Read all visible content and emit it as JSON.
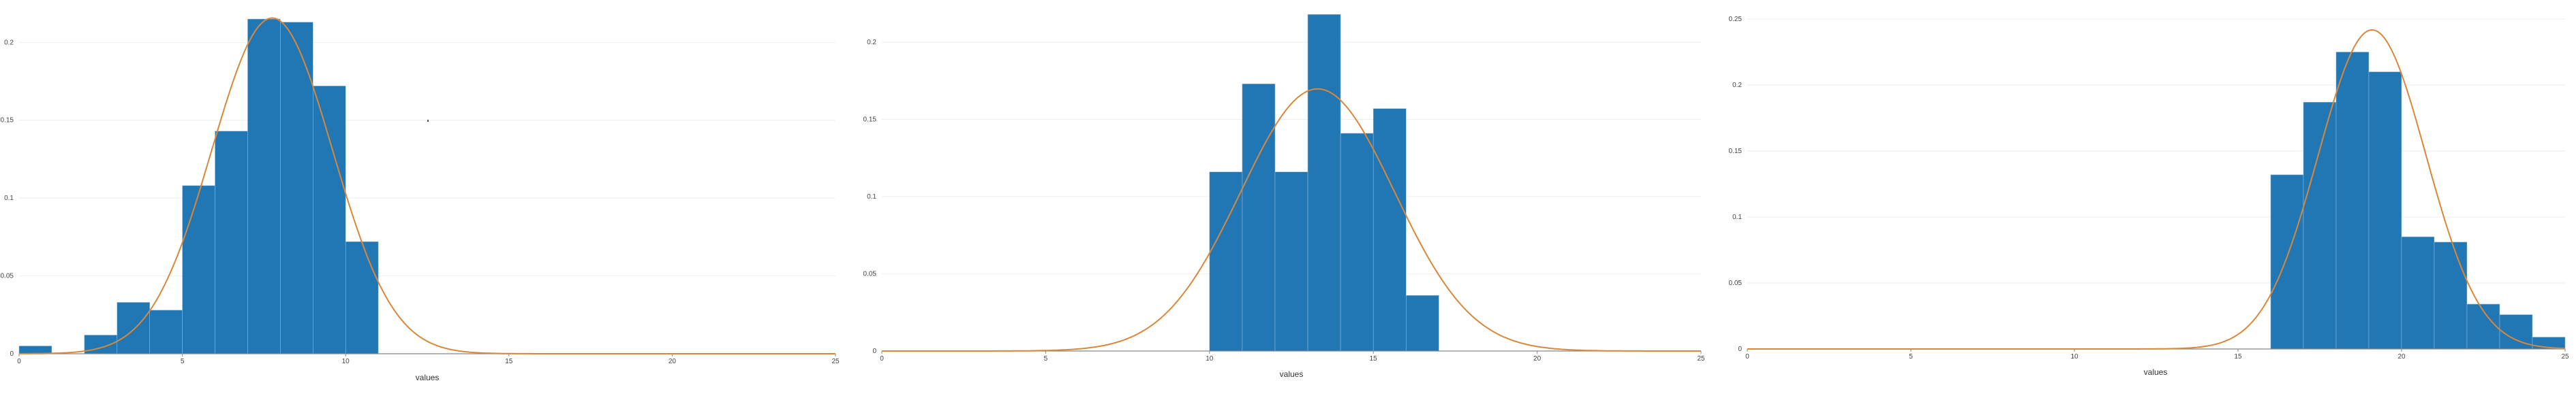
{
  "colors": {
    "bar": "#2077b4",
    "bar_edge": "#8fb9da",
    "curve": "#d9873a",
    "axis": "#888888",
    "grid": "#eeeeee"
  },
  "chart_data": [
    {
      "type": "bar",
      "subtype": "histogram-with-density",
      "xlabel": "values",
      "ylabel": "",
      "xlim": [
        0,
        25
      ],
      "ylim": [
        0,
        0.215
      ],
      "xticks": [
        0,
        5,
        10,
        15,
        20,
        25
      ],
      "yticks": [
        0,
        0.05,
        0.1,
        0.15,
        0.2
      ],
      "ytick_labels": [
        "0",
        "0.05",
        "0.1",
        "0.15",
        "0.2"
      ],
      "bin_width": 1,
      "bins": [
        {
          "x0": 0,
          "x1": 1,
          "value": 0.005
        },
        {
          "x0": 2,
          "x1": 3,
          "value": 0.012
        },
        {
          "x0": 3,
          "x1": 4,
          "value": 0.033
        },
        {
          "x0": 4,
          "x1": 5,
          "value": 0.028
        },
        {
          "x0": 5,
          "x1": 6,
          "value": 0.108
        },
        {
          "x0": 6,
          "x1": 7,
          "value": 0.143
        },
        {
          "x0": 7,
          "x1": 8,
          "value": 0.215
        },
        {
          "x0": 8,
          "x1": 9,
          "value": 0.213
        },
        {
          "x0": 9,
          "x1": 10,
          "value": 0.172
        },
        {
          "x0": 10,
          "x1": 11,
          "value": 0.072
        }
      ],
      "fit": {
        "mean": 7.75,
        "sd": 1.85
      }
    },
    {
      "type": "bar",
      "subtype": "histogram-with-density",
      "xlabel": "values",
      "ylabel": "",
      "xlim": [
        0,
        25
      ],
      "ylim": [
        0,
        0.215
      ],
      "xticks": [
        0,
        5,
        10,
        15,
        20,
        25
      ],
      "yticks": [
        0,
        0.05,
        0.1,
        0.15,
        0.2
      ],
      "ytick_labels": [
        "0",
        "0.05",
        "0.1",
        "0.15",
        "0.2"
      ],
      "bin_width": 1,
      "bins": [
        {
          "x0": 10,
          "x1": 11,
          "value": 0.116
        },
        {
          "x0": 11,
          "x1": 12,
          "value": 0.173
        },
        {
          "x0": 12,
          "x1": 13,
          "value": 0.116
        },
        {
          "x0": 13,
          "x1": 14,
          "value": 0.218
        },
        {
          "x0": 14,
          "x1": 15,
          "value": 0.141
        },
        {
          "x0": 15,
          "x1": 16,
          "value": 0.157
        },
        {
          "x0": 16,
          "x1": 17,
          "value": 0.036
        }
      ],
      "fit": {
        "mean": 13.3,
        "sd": 2.35
      }
    },
    {
      "type": "bar",
      "subtype": "histogram-with-density",
      "xlabel": "values",
      "ylabel": "",
      "xlim": [
        0,
        25
      ],
      "ylim": [
        0,
        0.25
      ],
      "xticks": [
        0,
        5,
        10,
        15,
        20,
        25
      ],
      "yticks": [
        0,
        0.05,
        0.1,
        0.15,
        0.2,
        0.25
      ],
      "ytick_labels": [
        "0",
        "0.05",
        "0.1",
        "0.15",
        "0.2",
        "0.25"
      ],
      "bin_width": 1,
      "bins": [
        {
          "x0": 16,
          "x1": 17,
          "value": 0.132
        },
        {
          "x0": 17,
          "x1": 18,
          "value": 0.187
        },
        {
          "x0": 18,
          "x1": 19,
          "value": 0.225
        },
        {
          "x0": 19,
          "x1": 20,
          "value": 0.21
        },
        {
          "x0": 20,
          "x1": 21,
          "value": 0.085
        },
        {
          "x0": 21,
          "x1": 22,
          "value": 0.081
        },
        {
          "x0": 22,
          "x1": 23,
          "value": 0.034
        },
        {
          "x0": 23,
          "x1": 24,
          "value": 0.026
        },
        {
          "x0": 24,
          "x1": 25,
          "value": 0.009
        }
      ],
      "fit": {
        "mean": 19.1,
        "sd": 1.65
      }
    }
  ]
}
